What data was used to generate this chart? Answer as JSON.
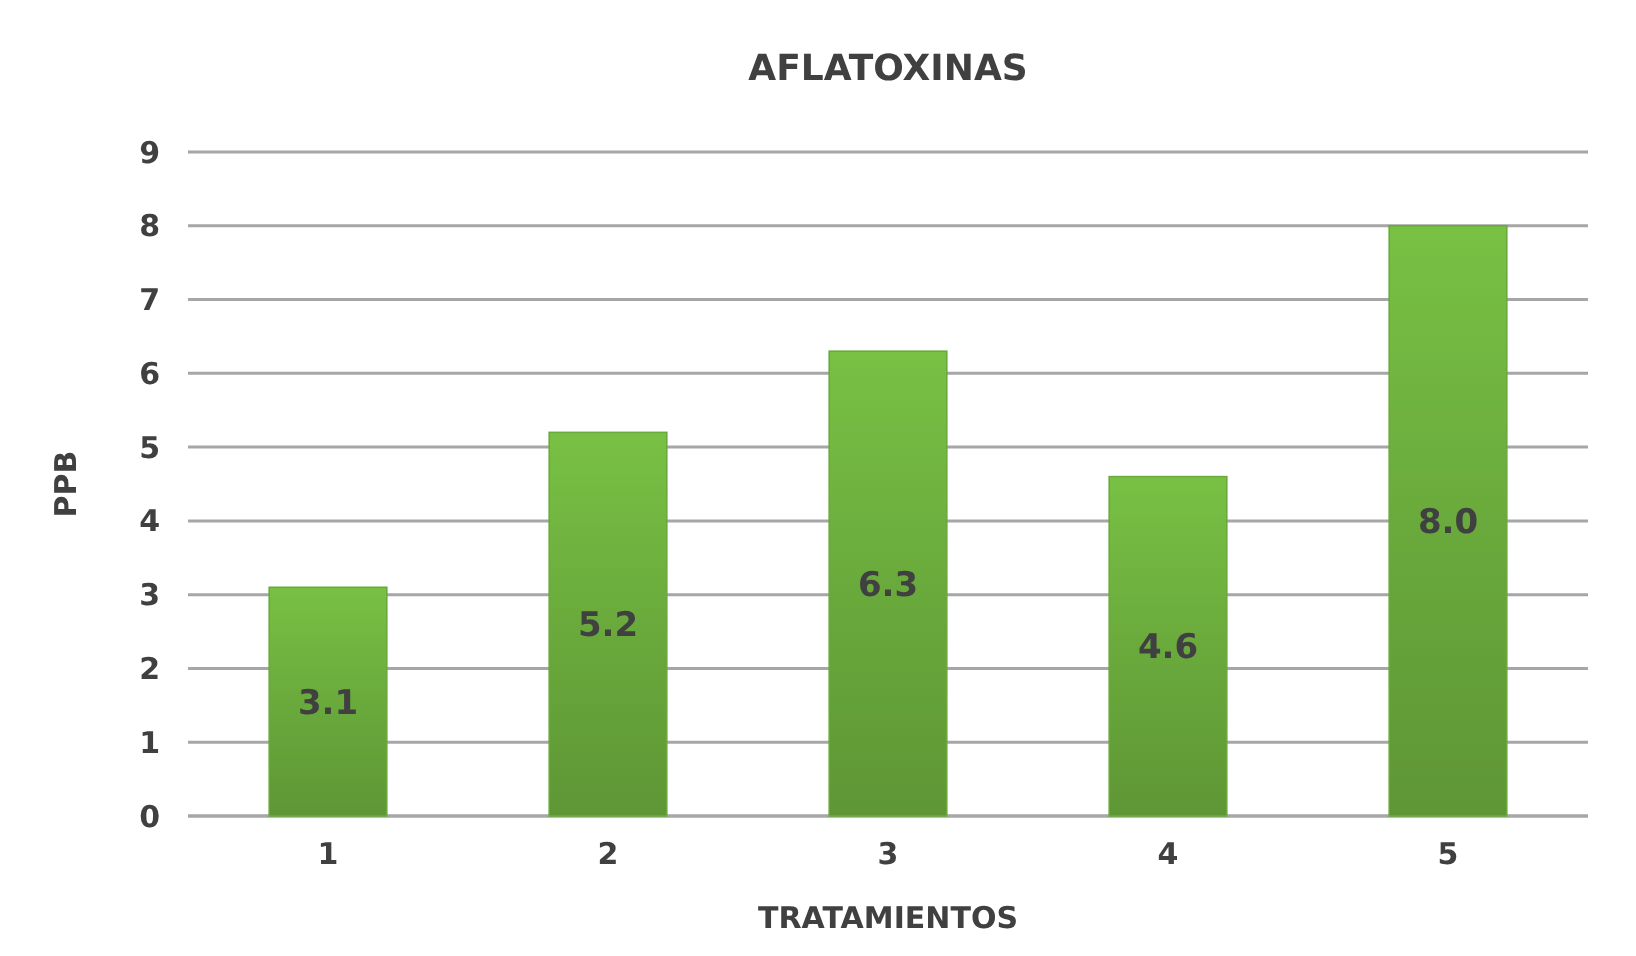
{
  "chart_data": {
    "type": "bar",
    "title": "AFLATOXINAS",
    "xlabel": "TRATAMIENTOS",
    "ylabel": "PPB",
    "categories": [
      "1",
      "2",
      "3",
      "4",
      "5"
    ],
    "values": [
      3.1,
      5.2,
      6.3,
      4.6,
      8.0
    ],
    "value_labels": [
      "3.1",
      "5.2",
      "6.3",
      "4.6",
      "8.0"
    ],
    "color": "#6aaa3c",
    "ylim": [
      0,
      9
    ],
    "yticks": [
      0,
      1,
      2,
      3,
      4,
      5,
      6,
      7,
      8,
      9
    ],
    "grid": "y"
  }
}
